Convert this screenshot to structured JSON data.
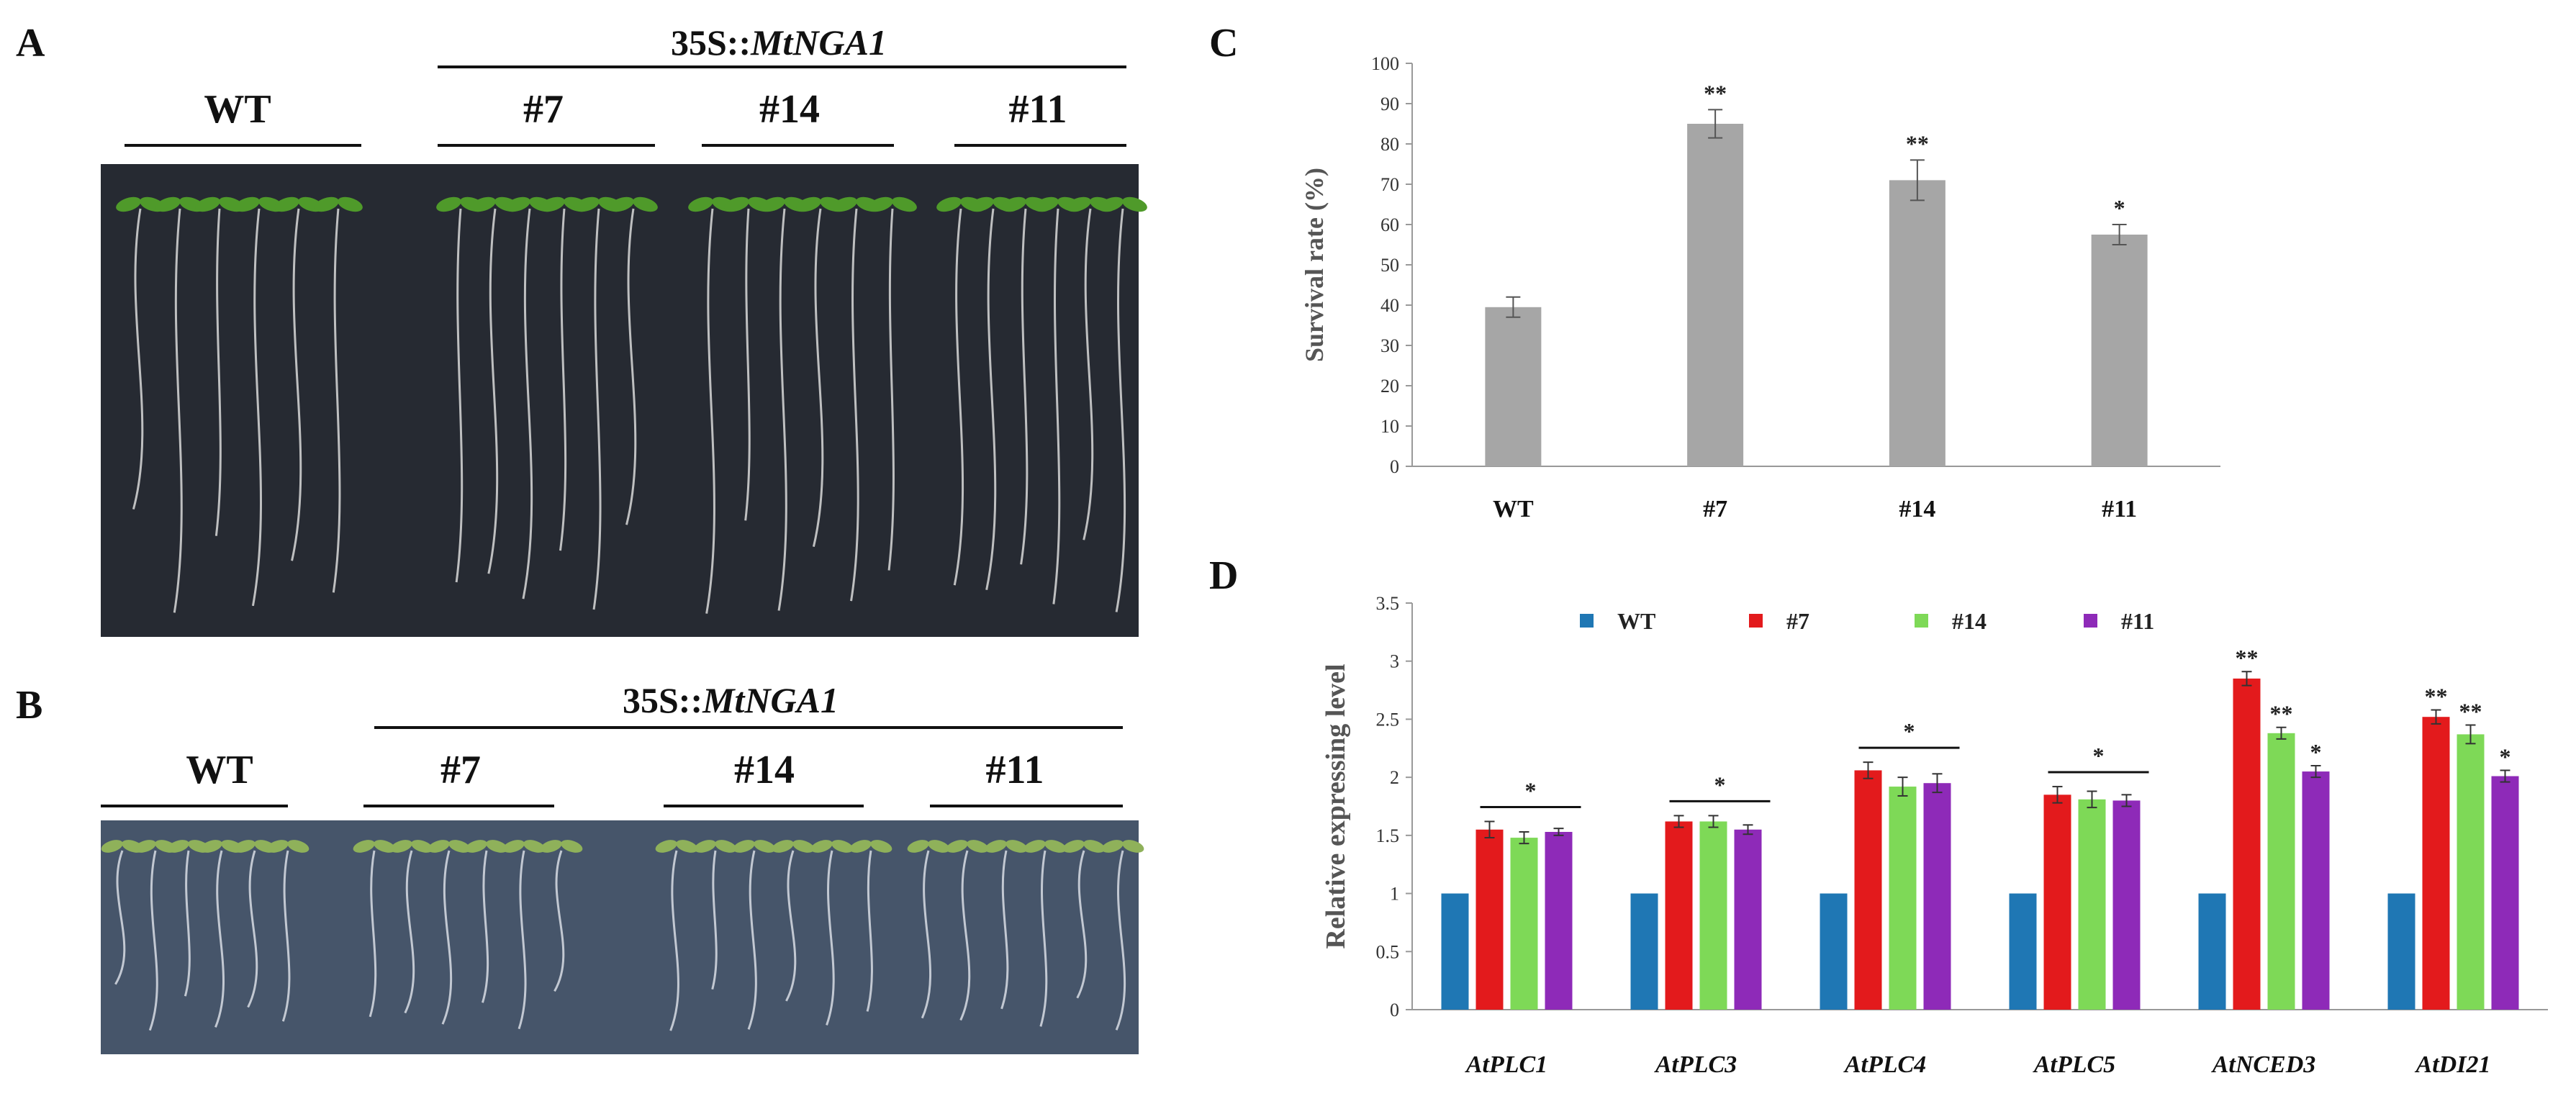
{
  "panels": {
    "a": {
      "letter": "A",
      "header": "35S::",
      "header_italic": "MtNGA1",
      "lines": [
        "WT",
        "#7",
        "#14",
        "#11"
      ]
    },
    "b": {
      "letter": "B",
      "header": "35S::",
      "header_italic": "MtNGA1",
      "lines": [
        "WT",
        "#7",
        "#14",
        "#11"
      ]
    },
    "c": {
      "letter": "C"
    },
    "d": {
      "letter": "D"
    }
  },
  "chart_data": [
    {
      "id": "C",
      "type": "bar",
      "categories": [
        "WT",
        "#7",
        "#14",
        "#11"
      ],
      "values": [
        39.5,
        85,
        71,
        57.5
      ],
      "errors": [
        2.5,
        3.5,
        5,
        2.5
      ],
      "significance": [
        "",
        "**",
        "**",
        "*"
      ],
      "ylabel": "Survival rate (%)",
      "xlabel": "",
      "ylim": [
        0,
        100
      ],
      "yticks": [
        0,
        10,
        20,
        30,
        40,
        50,
        60,
        70,
        80,
        90,
        100
      ],
      "grid": false,
      "color": "#a6a6a6"
    },
    {
      "id": "D",
      "type": "bar",
      "categories": [
        "AtPLC1",
        "AtPLC3",
        "AtPLC4",
        "AtPLC5",
        "AtNCED3",
        "AtDI21"
      ],
      "series": [
        {
          "name": "WT",
          "color": "#1f77b4",
          "values": [
            1,
            1,
            1,
            1,
            1,
            1
          ],
          "errors": [
            0,
            0,
            0,
            0,
            0,
            0
          ],
          "significance": [
            "",
            "",
            "",
            "",
            "",
            ""
          ]
        },
        {
          "name": "#7",
          "color": "#e31a1c",
          "values": [
            1.55,
            1.62,
            2.06,
            1.85,
            2.85,
            2.52
          ],
          "errors": [
            0.07,
            0.05,
            0.07,
            0.07,
            0.06,
            0.06
          ],
          "significance": [
            "",
            "",
            "",
            "",
            "**",
            "**"
          ]
        },
        {
          "name": "#14",
          "color": "#7ed957",
          "values": [
            1.48,
            1.62,
            1.92,
            1.81,
            2.38,
            2.37
          ],
          "errors": [
            0.05,
            0.05,
            0.08,
            0.07,
            0.05,
            0.08
          ],
          "significance": [
            "",
            "",
            "",
            "",
            "**",
            "**"
          ]
        },
        {
          "name": "#11",
          "color": "#8e2ab8",
          "values": [
            1.53,
            1.55,
            1.95,
            1.8,
            2.05,
            2.01
          ],
          "errors": [
            0.03,
            0.04,
            0.08,
            0.05,
            0.05,
            0.05
          ],
          "significance": [
            "",
            "",
            "",
            "",
            "*",
            "*"
          ]
        }
      ],
      "group_significance": [
        "*",
        "*",
        "*",
        "*",
        "",
        ""
      ],
      "ylabel": "Relative expressing level",
      "xlabel": "",
      "ylim": [
        0,
        3.5
      ],
      "yticks": [
        0,
        0.5,
        1,
        1.5,
        2,
        2.5,
        3,
        3.5
      ],
      "grid": false,
      "legend": "top-center"
    }
  ]
}
